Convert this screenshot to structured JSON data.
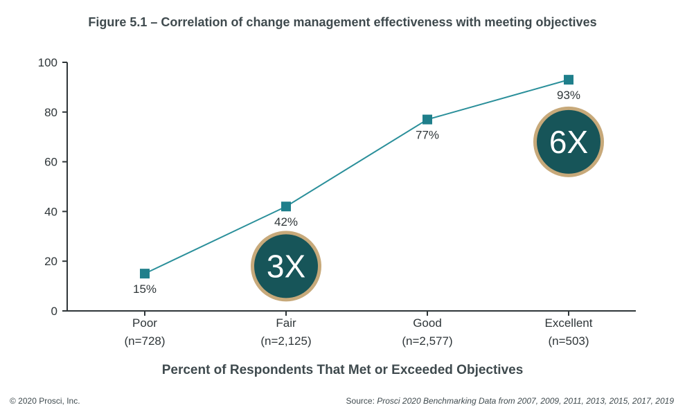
{
  "chart_data": {
    "type": "line",
    "title": "Figure 5.1 – Correlation of change management effectiveness with meeting objectives",
    "xlabel": "Percent of Respondents That Met or Exceeded Objectives",
    "ylabel": "",
    "ylim": [
      0,
      100
    ],
    "yticks": [
      "0",
      "20",
      "40",
      "60",
      "80",
      "100"
    ],
    "grid": false,
    "categories": [
      {
        "name": "Poor",
        "n": "(n=728)"
      },
      {
        "name": "Fair",
        "n": "(n=2,125)"
      },
      {
        "name": "Good",
        "n": "(n=2,577)"
      },
      {
        "name": "Excellent",
        "n": "(n=503)"
      }
    ],
    "series": [
      {
        "values": [
          15,
          42,
          77,
          93
        ],
        "labels": [
          "15%",
          "42%",
          "77%",
          "93%"
        ]
      }
    ],
    "annotations": [
      {
        "text": "3X",
        "category_index": 1,
        "y": 18
      },
      {
        "text": "6X",
        "category_index": 3,
        "y": 68
      }
    ]
  },
  "colors": {
    "line": "#2a8f9a",
    "marker": "#1f7f8b",
    "axis": "#2e3538",
    "badge_fill": "#175559",
    "badge_ring": "#c7a97a"
  },
  "footer": {
    "copyright": "© 2020 Prosci, Inc.",
    "source_prefix": "Source: ",
    "source_detail": "Prosci 2020 Benchmarking Data from 2007, 2009, 2011, 2013, 2015, 2017, 2019"
  }
}
